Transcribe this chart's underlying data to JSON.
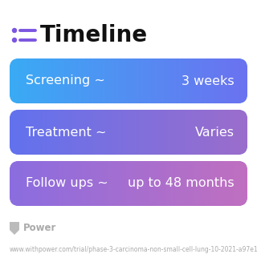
{
  "title": "Timeline",
  "background_color": "#ffffff",
  "rows": [
    {
      "label_left": "Screening ~",
      "label_right": "3 weeks",
      "color_left": "#3aabf5",
      "color_right": "#6b72f0"
    },
    {
      "label_left": "Treatment ~",
      "label_right": "Varies",
      "color_left": "#6272ee",
      "color_right": "#9b6dcc"
    },
    {
      "label_left": "Follow ups ~",
      "label_right": "up to 48 months",
      "color_left": "#8b6de0",
      "color_right": "#c070c0"
    }
  ],
  "footer_text": "Power",
  "footer_url": "www.withpower.com/trial/phase-3-carcinoma-non-small-cell-lung-10-2021-a97e1",
  "icon_color": "#7b55e0",
  "title_fontsize": 20,
  "row_fontsize": 11.5,
  "footer_fontsize": 8.5,
  "url_fontsize": 5.5
}
